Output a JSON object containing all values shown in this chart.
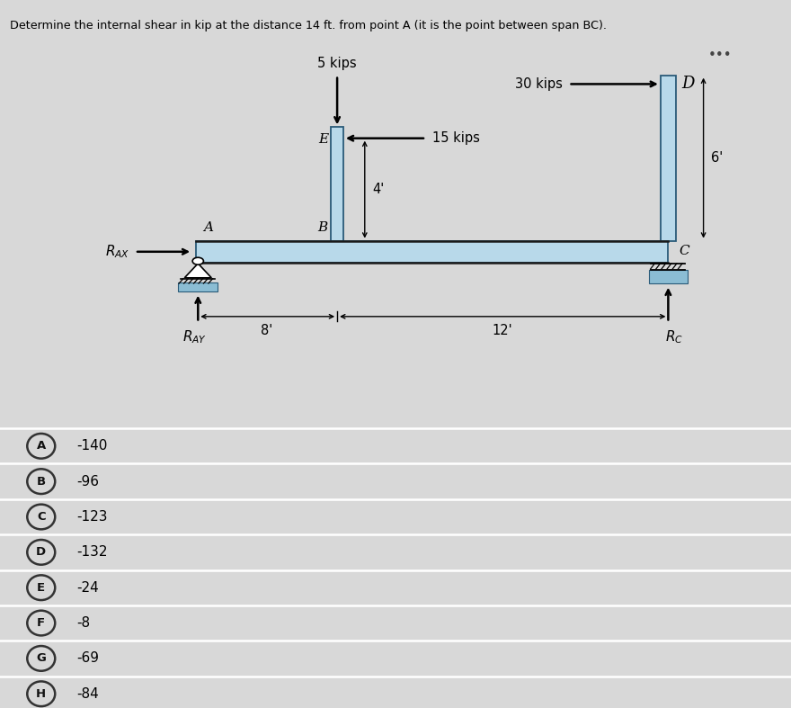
{
  "title": "Determine the internal shear in kip at the distance 14 ft. from point A (it is the point between span BC).",
  "background_color": "#d8d8d8",
  "diagram_bg": "#ffffff",
  "beam_color": "#b8d9ea",
  "beam_edge_color": "#2a5a78",
  "column_color": "#b8d9ea",
  "column_edge_color": "#2a5a78",
  "support_blue": "#8bbdd4",
  "choices": [
    {
      "letter": "A",
      "value": "-140"
    },
    {
      "letter": "B",
      "value": "-96"
    },
    {
      "letter": "C",
      "value": "-123"
    },
    {
      "letter": "D",
      "value": "-132"
    },
    {
      "letter": "E",
      "value": "-24"
    },
    {
      "letter": "F",
      "value": "-8"
    },
    {
      "letter": "G",
      "value": "-69"
    },
    {
      "letter": "H",
      "value": "-84"
    }
  ]
}
